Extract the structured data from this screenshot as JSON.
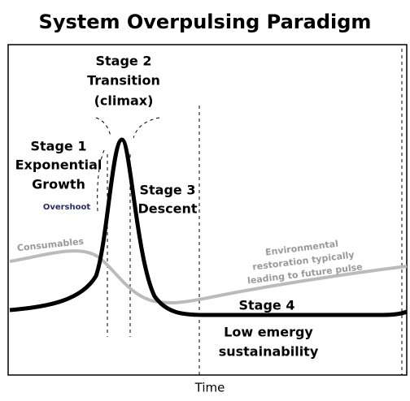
{
  "title": "System Overpulsing Paradigm",
  "stages": [
    {
      "lines": [
        "Stage 1",
        "Exponential",
        "Growth"
      ]
    },
    {
      "lines": [
        "Stage 2",
        "Transition",
        "(climax)"
      ]
    },
    {
      "lines": [
        "Stage 3",
        "Descent"
      ]
    },
    {
      "lines": [
        "Stage 4",
        "Low emergy",
        "sustainability"
      ]
    }
  ],
  "annotations": {
    "overshoot": "Overshoot",
    "consumables": "Consumables",
    "restoration": [
      "Environmental",
      "restoration typically",
      "leading to future pulse"
    ]
  },
  "x_axis_label": "Time"
}
